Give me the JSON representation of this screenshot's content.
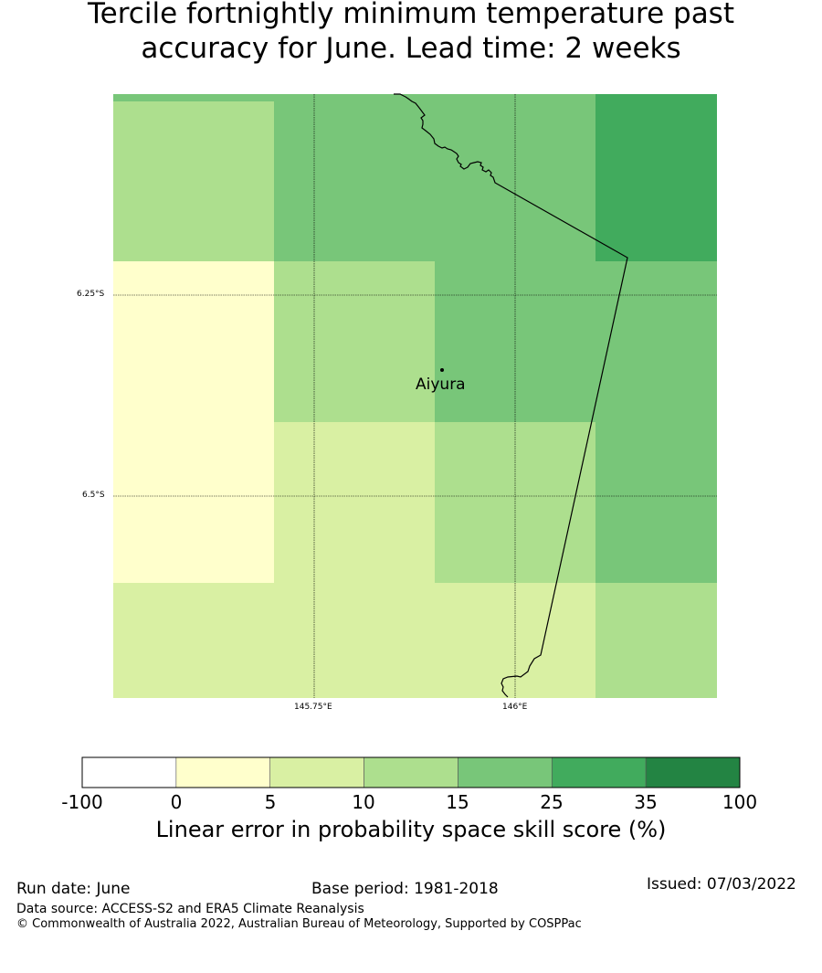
{
  "title_line1": "Tercile fortnightly minimum temperature past",
  "title_line2": "accuracy for June. Lead time: 2 weeks",
  "map": {
    "grid_colors": [
      [
        "#addf8e",
        "#78c679",
        "#78c679",
        "#41ab5d"
      ],
      [
        "#ffffcc",
        "#addf8e",
        "#78c679",
        "#78c679"
      ],
      [
        "#ffffcc",
        "#d9f0a3",
        "#addf8e",
        "#78c679"
      ],
      [
        "#d9f0a3",
        "#d9f0a3",
        "#d9f0a3",
        "#addf8e"
      ]
    ],
    "lat_labels": [
      "6.25°S",
      "6.5°S"
    ],
    "lon_labels": [
      "145.75°E",
      "146°E"
    ],
    "place": "Aiyura"
  },
  "colorbar": {
    "ticks": [
      "-100",
      "0",
      "5",
      "10",
      "15",
      "25",
      "35",
      "100"
    ],
    "colors": [
      "#ffffff",
      "#ffffcc",
      "#d9f0a3",
      "#addf8e",
      "#78c679",
      "#41ab5d",
      "#238443"
    ],
    "label": "Linear error in probability space skill score (%)"
  },
  "footer": {
    "run_date": "Run date: June",
    "base_period": "Base period: 1981-2018",
    "issued": "Issued: 07/03/2022",
    "data_source": "Data source: ACCESS-S2 and ERA5 Climate Reanalysis",
    "copyright": "© Commonwealth of Australia 2022, Australian Bureau of Meteorology, Supported by COSPPac"
  }
}
